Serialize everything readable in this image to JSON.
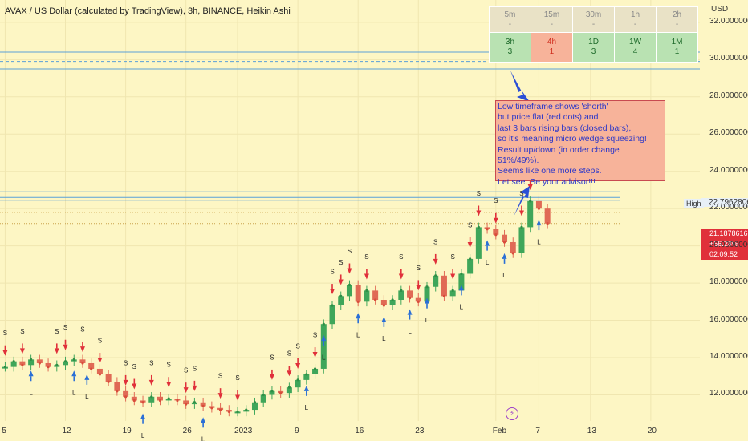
{
  "header": {
    "title": "AVAX / US Dollar (calculated by TradingView), 3h, BINANCE, Heikin Ashi",
    "currency": "USD"
  },
  "mtf_table": {
    "row1": [
      {
        "tf": "5m",
        "val": "-"
      },
      {
        "tf": "15m",
        "val": "-"
      },
      {
        "tf": "30m",
        "val": "-"
      },
      {
        "tf": "1h",
        "val": "-"
      },
      {
        "tf": "2h",
        "val": "-"
      }
    ],
    "row2": [
      {
        "tf": "3h",
        "val": "3",
        "signal": "long"
      },
      {
        "tf": "4h",
        "val": "1",
        "signal": "short"
      },
      {
        "tf": "1D",
        "val": "3",
        "signal": "long"
      },
      {
        "tf": "1W",
        "val": "4",
        "signal": "long"
      },
      {
        "tf": "1M",
        "val": "1",
        "signal": "long"
      }
    ]
  },
  "annotation": {
    "lines": [
      "Low timeframe shows 'shorth'",
      "but price flat (red dots) and",
      "last 3 bars rising bars (closed bars),",
      "so it's meaning micro wedge squeezing!",
      "Result up/down (in order change 51%/49%).",
      "Seems like one more steps.",
      "Let see. Be your advisor!!!"
    ]
  },
  "price_badges": {
    "current_price": "21.1878616",
    "change": "+56.28%",
    "countdown": "02:09:52",
    "high_label": "High",
    "high_value": "22.7962806"
  },
  "colors": {
    "background": "#fdf6c4",
    "bull": "#3fa65a",
    "bear": "#e06a55",
    "long_arrow": "#2a6fd6",
    "short_arrow": "#e0303a",
    "level_line": "#5aa0d8",
    "note_bg": "#f7b39a",
    "note_text": "#2a36c9"
  },
  "chart_data": {
    "type": "candlestick",
    "title": "AVAX / US Dollar (calculated by TradingView), 3h, BINANCE, Heikin Ashi",
    "xlabel": "",
    "ylabel": "USD",
    "ylim": [
      10.6,
      33.2
    ],
    "y_ticks": [
      12,
      14,
      16,
      18,
      20,
      22,
      24,
      26,
      28,
      30,
      32
    ],
    "y_tick_labels": [
      "12.0000000",
      "14.0000000",
      "16.0000000",
      "18.0000000",
      "20.0000000",
      "22.0000000",
      "24.0000000",
      "26.0000000",
      "28.0000000",
      "30.0000000",
      "32.0000000"
    ],
    "x_ticks": [
      {
        "label": "5",
        "t": 0
      },
      {
        "label": "12",
        "t": 7
      },
      {
        "label": "19",
        "t": 14
      },
      {
        "label": "26",
        "t": 21
      },
      {
        "label": "2023",
        "t": 27
      },
      {
        "label": "9",
        "t": 34
      },
      {
        "label": "16",
        "t": 41
      },
      {
        "label": "23",
        "t": 48
      },
      {
        "label": "Feb",
        "t": 57
      },
      {
        "label": "7",
        "t": 62
      },
      {
        "label": "13",
        "t": 68
      },
      {
        "label": "20",
        "t": 75
      }
    ],
    "xlim": [
      -0.6,
      80.7
    ],
    "price_path": [
      [
        0,
        13.5
      ],
      [
        1,
        13.8
      ],
      [
        2,
        13.6
      ],
      [
        3,
        13.9
      ],
      [
        4,
        13.7
      ],
      [
        5,
        13.5
      ],
      [
        6,
        13.6
      ],
      [
        7,
        13.8
      ],
      [
        8,
        13.9
      ],
      [
        9,
        13.7
      ],
      [
        10,
        13.4
      ],
      [
        11,
        13.1
      ],
      [
        12,
        12.7
      ],
      [
        13,
        12.2
      ],
      [
        14,
        11.9
      ],
      [
        15,
        11.7
      ],
      [
        16,
        11.6
      ],
      [
        17,
        11.9
      ],
      [
        18,
        11.7
      ],
      [
        19,
        11.8
      ],
      [
        20,
        11.7
      ],
      [
        21,
        11.5
      ],
      [
        22,
        11.6
      ],
      [
        23,
        11.4
      ],
      [
        24,
        11.3
      ],
      [
        25,
        11.2
      ],
      [
        26,
        11.1
      ],
      [
        27,
        11.1
      ],
      [
        28,
        11.2
      ],
      [
        29,
        11.6
      ],
      [
        30,
        12.0
      ],
      [
        31,
        12.2
      ],
      [
        32,
        12.1
      ],
      [
        33,
        12.4
      ],
      [
        34,
        12.8
      ],
      [
        35,
        13.1
      ],
      [
        36,
        13.4
      ],
      [
        37,
        15.8
      ],
      [
        38,
        16.8
      ],
      [
        39,
        17.3
      ],
      [
        40,
        17.9
      ],
      [
        41,
        17.0
      ],
      [
        42,
        17.6
      ],
      [
        43,
        17.1
      ],
      [
        44,
        16.8
      ],
      [
        45,
        17.1
      ],
      [
        46,
        17.6
      ],
      [
        47,
        17.2
      ],
      [
        48,
        17.0
      ],
      [
        49,
        17.8
      ],
      [
        50,
        18.4
      ],
      [
        51,
        17.3
      ],
      [
        52,
        17.6
      ],
      [
        53,
        18.5
      ],
      [
        54,
        19.3
      ],
      [
        55,
        21.0
      ],
      [
        56,
        20.9
      ],
      [
        57,
        20.6
      ],
      [
        58,
        20.2
      ],
      [
        59,
        19.6
      ],
      [
        60,
        21.0
      ],
      [
        61,
        22.4
      ],
      [
        62,
        22.0
      ],
      [
        63,
        21.2
      ]
    ],
    "horizontal_levels": [
      {
        "y": 30.4,
        "style": "solid"
      },
      {
        "y": 29.9,
        "style": "dashed"
      },
      {
        "y": 29.5,
        "style": "solid"
      },
      {
        "y": 22.9,
        "style": "solid"
      },
      {
        "y": 22.6,
        "style": "solid"
      },
      {
        "y": 22.45,
        "style": "solid"
      },
      {
        "y": 21.8,
        "style": "dotted"
      },
      {
        "y": 21.2,
        "style": "dotted"
      }
    ],
    "signals": [
      {
        "t": 0,
        "type": "S"
      },
      {
        "t": 2,
        "type": "S"
      },
      {
        "t": 3,
        "type": "L"
      },
      {
        "t": 6,
        "type": "S"
      },
      {
        "t": 7,
        "type": "S"
      },
      {
        "t": 8,
        "type": "L"
      },
      {
        "t": 9,
        "type": "S"
      },
      {
        "t": 9.5,
        "type": "L"
      },
      {
        "t": 11,
        "type": "S"
      },
      {
        "t": 14,
        "type": "S"
      },
      {
        "t": 15,
        "type": "S"
      },
      {
        "t": 16,
        "type": "L"
      },
      {
        "t": 17,
        "type": "S"
      },
      {
        "t": 19,
        "type": "S"
      },
      {
        "t": 21,
        "type": "S"
      },
      {
        "t": 22,
        "type": "S"
      },
      {
        "t": 23,
        "type": "L"
      },
      {
        "t": 25,
        "type": "S"
      },
      {
        "t": 27,
        "type": "S"
      },
      {
        "t": 31,
        "type": "S"
      },
      {
        "t": 33,
        "type": "S"
      },
      {
        "t": 34,
        "type": "S"
      },
      {
        "t": 35,
        "type": "L"
      },
      {
        "t": 36,
        "type": "S"
      },
      {
        "t": 37,
        "type": "L"
      },
      {
        "t": 38,
        "type": "S"
      },
      {
        "t": 39,
        "type": "S"
      },
      {
        "t": 40,
        "type": "S"
      },
      {
        "t": 41,
        "type": "L"
      },
      {
        "t": 42,
        "type": "S"
      },
      {
        "t": 44,
        "type": "L"
      },
      {
        "t": 46,
        "type": "S"
      },
      {
        "t": 47,
        "type": "L"
      },
      {
        "t": 48,
        "type": "S"
      },
      {
        "t": 49,
        "type": "L"
      },
      {
        "t": 50,
        "type": "S"
      },
      {
        "t": 52,
        "type": "S"
      },
      {
        "t": 53,
        "type": "L"
      },
      {
        "t": 54,
        "type": "S"
      },
      {
        "t": 55,
        "type": "S"
      },
      {
        "t": 56,
        "type": "L"
      },
      {
        "t": 57,
        "type": "S"
      },
      {
        "t": 58,
        "type": "L"
      },
      {
        "t": 60,
        "type": "S"
      },
      {
        "t": 61,
        "type": "S"
      },
      {
        "t": 62,
        "type": "L"
      }
    ]
  }
}
